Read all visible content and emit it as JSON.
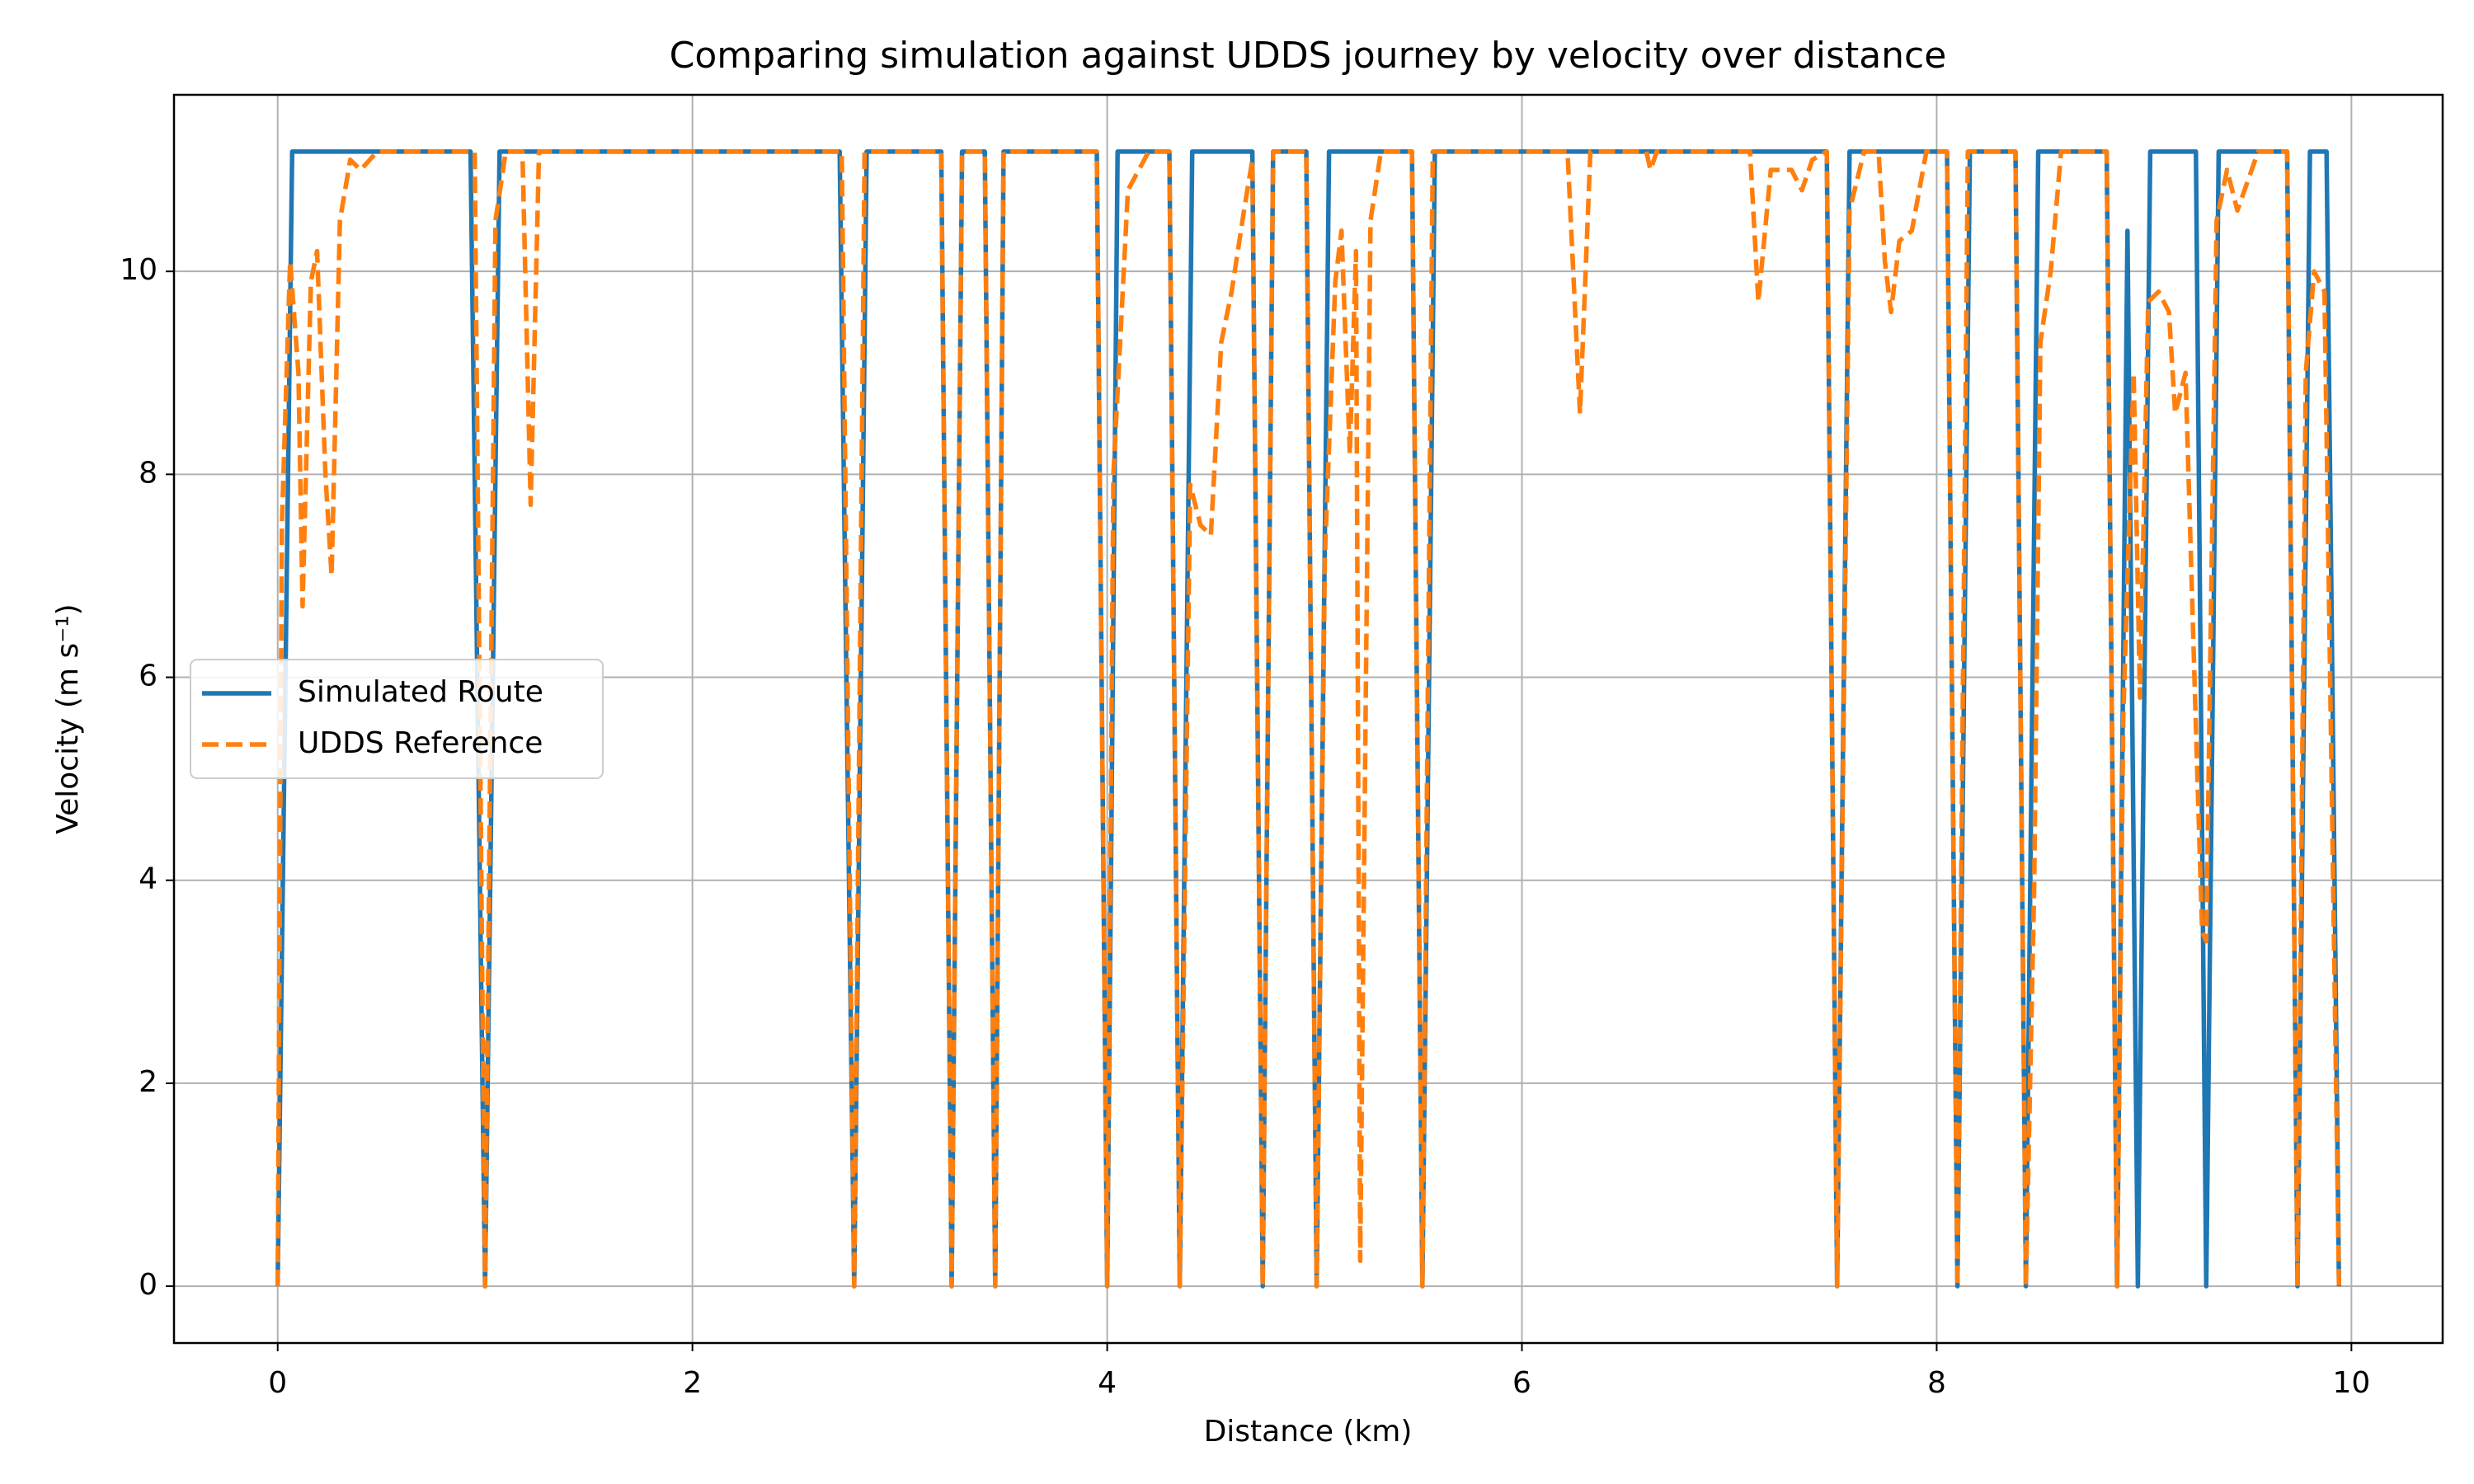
{
  "chart_data": {
    "type": "line",
    "title": "Comparing simulation against UDDS journey by velocity over distance",
    "x_label": "Distance (km)",
    "y_label": "Velocity (m s⁻¹)",
    "xlim": [
      -0.5,
      10.44
    ],
    "ylim": [
      -0.56,
      11.74
    ],
    "xticks": [
      0,
      2,
      4,
      6,
      8,
      10
    ],
    "yticks": [
      0,
      2,
      4,
      6,
      8,
      10
    ],
    "grid": true,
    "legend_position": "center left",
    "series": [
      {
        "name": "Simulated Route",
        "color": "#1f77b4",
        "dash": "solid",
        "x": [
          0,
          0.07,
          0.93,
          1.0,
          1.07,
          2.71,
          2.78,
          2.84,
          3.2,
          3.25,
          3.3,
          3.41,
          3.46,
          3.5,
          3.95,
          4.0,
          4.05,
          4.3,
          4.35,
          4.41,
          4.7,
          4.75,
          4.8,
          4.96,
          5.01,
          5.07,
          5.47,
          5.52,
          5.58,
          7.47,
          7.52,
          7.58,
          8.05,
          8.1,
          8.16,
          8.38,
          8.43,
          8.49,
          8.82,
          8.87,
          8.92,
          8.97,
          9.03,
          9.25,
          9.3,
          9.36,
          9.69,
          9.74,
          9.8,
          9.88,
          9.94
        ],
        "values": [
          0,
          11.18,
          11.18,
          0,
          11.18,
          11.18,
          0,
          11.18,
          11.18,
          0,
          11.18,
          11.18,
          0,
          11.18,
          11.18,
          0,
          11.18,
          11.18,
          0,
          11.18,
          11.18,
          0,
          11.18,
          11.18,
          0,
          11.18,
          11.18,
          0,
          11.18,
          11.18,
          0,
          11.18,
          11.18,
          0,
          11.18,
          11.18,
          0,
          11.18,
          11.18,
          0,
          10.4,
          0,
          11.18,
          11.18,
          0,
          11.18,
          11.18,
          0,
          11.18,
          11.18,
          0
        ]
      },
      {
        "name": "UDDS Reference",
        "color": "#ff7f0e",
        "dash": "dashed",
        "x": [
          0,
          0.02,
          0.06,
          0.1,
          0.12,
          0.16,
          0.19,
          0.23,
          0.26,
          0.3,
          0.35,
          0.4,
          0.48,
          0.95,
          1.0,
          1.05,
          1.1,
          1.18,
          1.22,
          1.26,
          2.72,
          2.78,
          2.83,
          3.2,
          3.25,
          3.3,
          3.41,
          3.46,
          3.5,
          3.95,
          4.0,
          4.03,
          4.1,
          4.2,
          4.3,
          4.35,
          4.4,
          4.45,
          4.5,
          4.55,
          4.6,
          4.66,
          4.7,
          4.75,
          4.8,
          4.96,
          5.01,
          5.05,
          5.1,
          5.13,
          5.17,
          5.2,
          5.22,
          5.27,
          5.32,
          5.47,
          5.52,
          5.57,
          6.22,
          6.28,
          6.33,
          6.6,
          6.62,
          6.65,
          7.1,
          7.14,
          7.2,
          7.3,
          7.35,
          7.4,
          7.47,
          7.52,
          7.58,
          7.65,
          7.72,
          7.75,
          7.78,
          7.82,
          7.88,
          7.95,
          8.05,
          8.1,
          8.15,
          8.38,
          8.43,
          8.47,
          8.5,
          8.55,
          8.6,
          8.82,
          8.87,
          8.9,
          8.95,
          8.98,
          9.02,
          9.07,
          9.12,
          9.15,
          9.2,
          9.25,
          9.28,
          9.3,
          9.35,
          9.4,
          9.45,
          9.55,
          9.69,
          9.74,
          9.78,
          9.82,
          9.87,
          9.94
        ],
        "values": [
          0,
          7.5,
          10.1,
          9,
          6.7,
          9.9,
          10.2,
          8.0,
          7.0,
          10.5,
          11.1,
          11.0,
          11.18,
          11.18,
          0,
          10.5,
          11.18,
          11.18,
          7.7,
          11.18,
          11.18,
          0,
          11.18,
          11.18,
          0,
          11.18,
          11.18,
          0,
          11.18,
          11.18,
          0,
          8.0,
          10.8,
          11.18,
          11.18,
          0,
          7.9,
          7.5,
          7.4,
          9.3,
          9.8,
          10.6,
          11.1,
          0,
          11.18,
          11.18,
          0,
          7.2,
          9.9,
          10.4,
          8.2,
          10.2,
          0.25,
          10.5,
          11.18,
          11.18,
          0,
          11.18,
          11.18,
          8.6,
          11.18,
          11.18,
          11.0,
          11.18,
          11.18,
          9.7,
          11.0,
          11.0,
          10.8,
          11.1,
          11.18,
          0,
          10.6,
          11.18,
          11.18,
          10.1,
          9.6,
          10.3,
          10.4,
          11.18,
          11.18,
          0,
          11.18,
          11.18,
          0,
          3.9,
          9.3,
          10.0,
          11.18,
          11.18,
          0,
          5.6,
          9.0,
          5.8,
          9.7,
          9.8,
          9.6,
          8.6,
          9.0,
          5.5,
          3.5,
          3.4,
          10.5,
          11.0,
          10.6,
          11.18,
          11.18,
          0,
          9.0,
          10.0,
          9.8,
          0
        ]
      }
    ]
  }
}
